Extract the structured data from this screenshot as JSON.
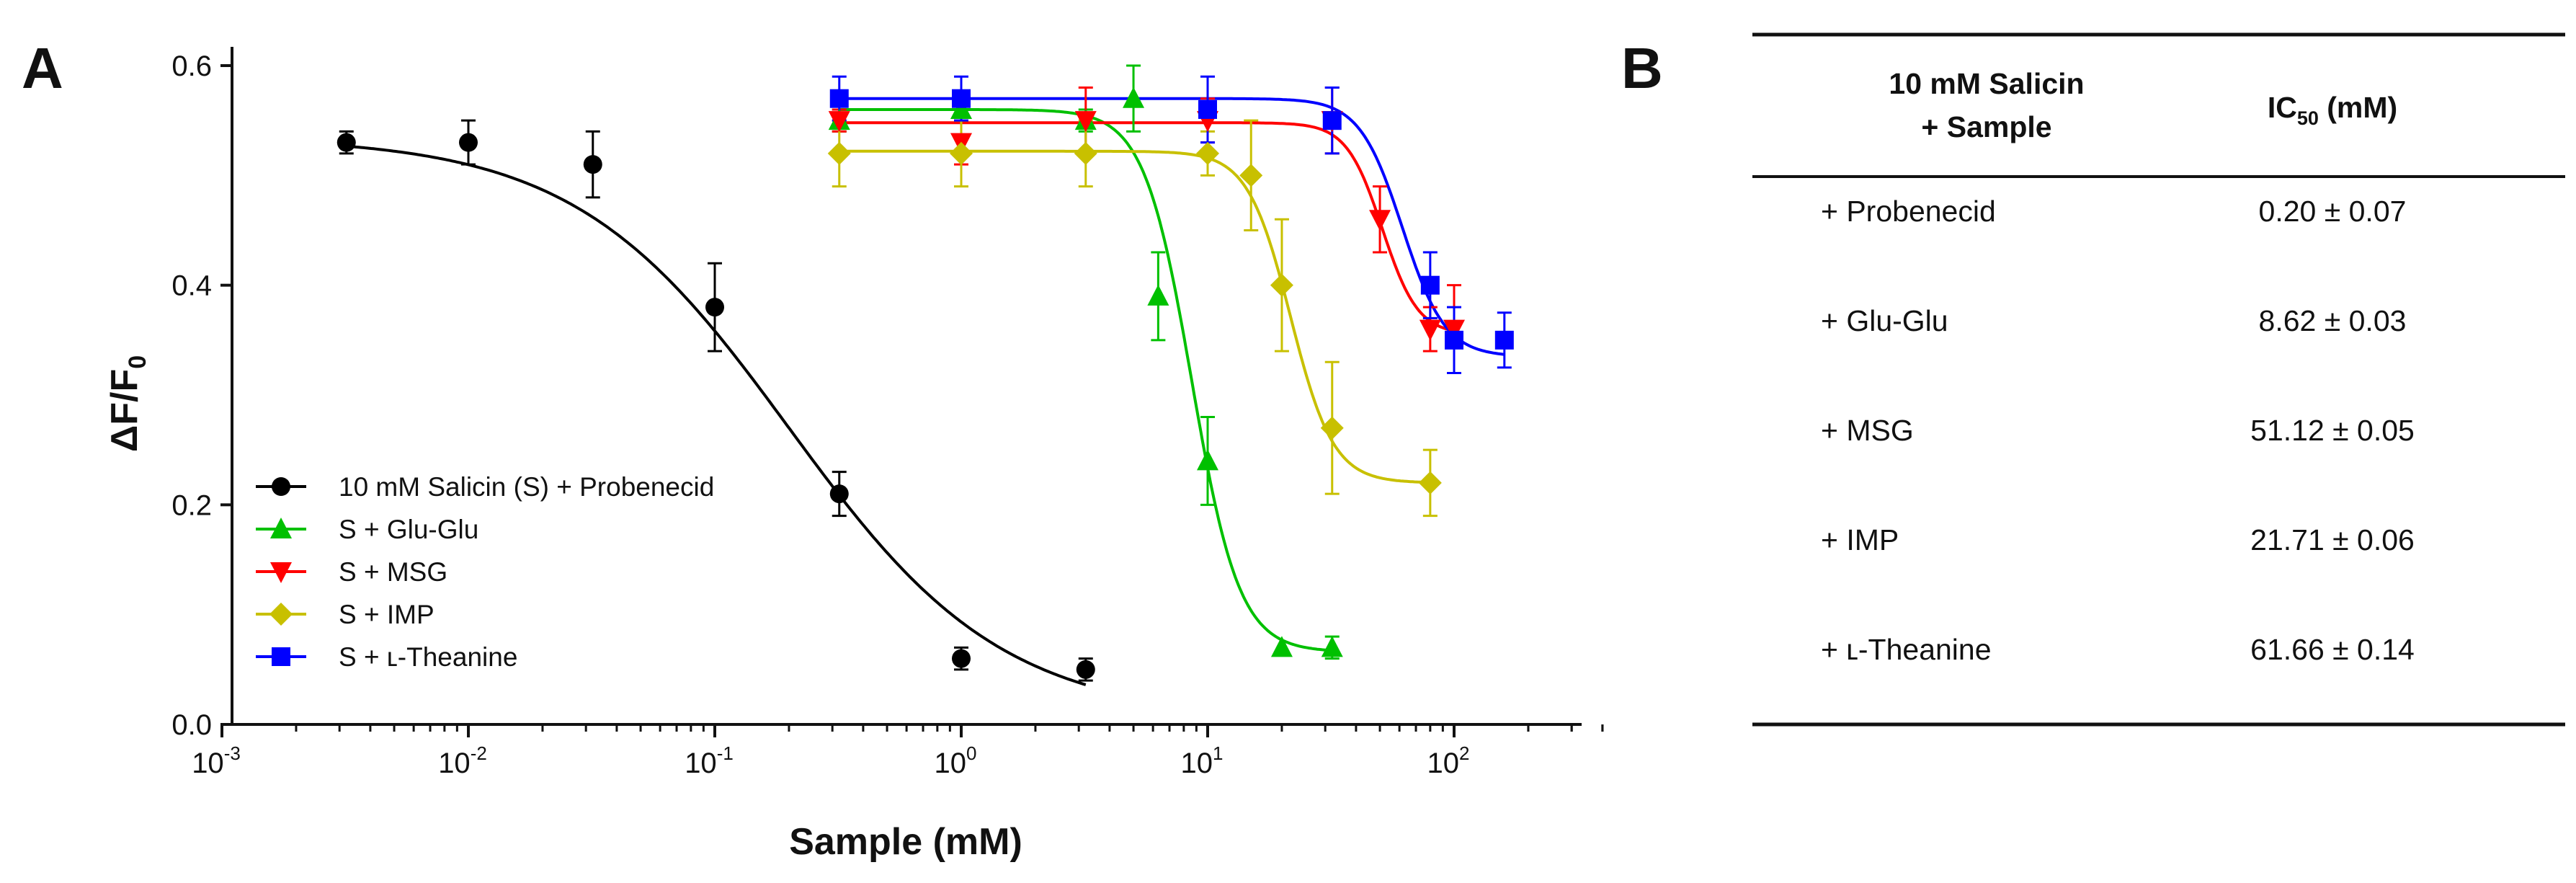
{
  "panels": {
    "a_label": "A",
    "b_label": "B"
  },
  "chart_data": {
    "type": "scatter",
    "x_scale": "log10",
    "xlim": [
      0.001,
      400
    ],
    "ylim": [
      0.0,
      0.62
    ],
    "xlabel": "Sample (mM)",
    "ylabel": {
      "main": "ΔF/F",
      "sub": "0"
    },
    "x_ticks": [
      {
        "base": "10",
        "exp": "-3",
        "value": 0.001
      },
      {
        "base": "10",
        "exp": "-2",
        "value": 0.01
      },
      {
        "base": "10",
        "exp": "-1",
        "value": 0.1
      },
      {
        "base": "10",
        "exp": "0",
        "value": 1
      },
      {
        "base": "10",
        "exp": "1",
        "value": 10
      },
      {
        "base": "10",
        "exp": "2",
        "value": 100
      }
    ],
    "y_ticks": [
      {
        "label": "0.0",
        "value": 0.0
      },
      {
        "label": "0.2",
        "value": 0.2
      },
      {
        "label": "0.4",
        "value": 0.4
      },
      {
        "label": "0.6",
        "value": 0.6
      }
    ],
    "series": [
      {
        "name": "10 mM Salicin (S) + Probenecid",
        "color": "#000000",
        "marker": "circle",
        "x": [
          0.0032,
          0.01,
          0.032,
          0.1,
          0.32,
          1.0,
          3.2
        ],
        "y": [
          0.53,
          0.53,
          0.51,
          0.38,
          0.21,
          0.06,
          0.05
        ],
        "err": [
          0.01,
          0.02,
          0.03,
          0.04,
          0.02,
          0.01,
          0.01
        ],
        "fit": {
          "top": 0.535,
          "bottom": 0.005,
          "ic50": 0.2,
          "hill": 1.0,
          "xmin": 0.0032,
          "xmax": 3.2
        }
      },
      {
        "name": "S + Glu-Glu",
        "color": "#00C000",
        "marker": "triangle-up",
        "x": [
          0.32,
          1.0,
          3.2,
          5.0,
          6.3,
          10.0,
          20.0,
          32.0
        ],
        "y": [
          0.55,
          0.56,
          0.55,
          0.57,
          0.39,
          0.24,
          0.07,
          0.07
        ],
        "err": [
          0.01,
          0.01,
          0.01,
          0.03,
          0.04,
          0.04,
          0.0,
          0.01
        ],
        "fit": {
          "top": 0.56,
          "bottom": 0.066,
          "ic50": 8.62,
          "hill": 4.5,
          "xmin": 0.32,
          "xmax": 32
        }
      },
      {
        "name": "S + MSG",
        "color": "#FF0000",
        "marker": "triangle-down",
        "x": [
          0.32,
          1.0,
          3.2,
          10.0,
          32.0,
          50.0,
          80.0,
          100.0
        ],
        "y": [
          0.55,
          0.53,
          0.55,
          0.55,
          0.55,
          0.46,
          0.36,
          0.36
        ],
        "err": [
          0.01,
          0.02,
          0.03,
          0.02,
          0.03,
          0.03,
          0.02,
          0.04
        ],
        "fit": {
          "top": 0.548,
          "bottom": 0.355,
          "ic50": 51.12,
          "hill": 6,
          "xmin": 0.32,
          "xmax": 100
        }
      },
      {
        "name": "S + IMP",
        "color": "#C8C000",
        "marker": "diamond",
        "x": [
          0.32,
          1.0,
          3.2,
          10.0,
          15.0,
          20.0,
          32.0,
          80.0
        ],
        "y": [
          0.52,
          0.52,
          0.52,
          0.52,
          0.5,
          0.4,
          0.27,
          0.22
        ],
        "err": [
          0.03,
          0.03,
          0.03,
          0.02,
          0.05,
          0.06,
          0.06,
          0.03
        ],
        "fit": {
          "top": 0.522,
          "bottom": 0.22,
          "ic50": 21.71,
          "hill": 5,
          "xmin": 0.32,
          "xmax": 80
        }
      },
      {
        "name": "S + ʟ-Theanine",
        "color": "#0000FF",
        "marker": "square",
        "x": [
          0.32,
          1.0,
          10.0,
          32.0,
          80.0,
          100.0,
          160.0
        ],
        "y": [
          0.57,
          0.57,
          0.56,
          0.55,
          0.4,
          0.35,
          0.35
        ],
        "err": [
          0.02,
          0.02,
          0.03,
          0.03,
          0.03,
          0.03,
          0.025
        ],
        "fit": {
          "top": 0.57,
          "bottom": 0.335,
          "ic50": 61.66,
          "hill": 5,
          "xmin": 0.32,
          "xmax": 160
        }
      }
    ]
  },
  "table": {
    "header_col1": [
      "10 mM Salicin",
      "+ Sample"
    ],
    "header_col2": {
      "main": "IC",
      "sub": "50",
      "rest": " (mM)"
    },
    "rows": [
      {
        "sample": "+ Probenecid",
        "ic50": "0.20 ± 0.07"
      },
      {
        "sample": "+ Glu-Glu",
        "ic50": "8.62 ± 0.03"
      },
      {
        "sample": "+ MSG",
        "ic50": "51.12 ± 0.05"
      },
      {
        "sample": "+ IMP",
        "ic50": "21.71 ± 0.06"
      },
      {
        "sample": "+ ʟ-Theanine",
        "ic50": "61.66 ± 0.14"
      }
    ]
  }
}
